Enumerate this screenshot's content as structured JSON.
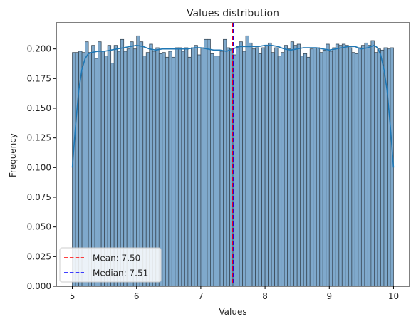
{
  "chart_data": {
    "type": "bar",
    "title": "Values distribution",
    "xlabel": "Values",
    "ylabel": "Frequency",
    "xlim": [
      4.75,
      10.25
    ],
    "ylim": [
      0,
      0.222
    ],
    "x_ticks": [
      "5",
      "6",
      "7",
      "8",
      "9",
      "10"
    ],
    "y_ticks": [
      "0.000",
      "0.025",
      "0.050",
      "0.075",
      "0.100",
      "0.125",
      "0.150",
      "0.175",
      "0.200"
    ],
    "bin_start": 5.0,
    "bin_width": 0.05,
    "values": [
      0.197,
      0.197,
      0.198,
      0.197,
      0.206,
      0.197,
      0.203,
      0.192,
      0.206,
      0.198,
      0.194,
      0.203,
      0.188,
      0.203,
      0.198,
      0.208,
      0.198,
      0.2,
      0.206,
      0.2,
      0.211,
      0.206,
      0.194,
      0.197,
      0.204,
      0.198,
      0.201,
      0.196,
      0.197,
      0.193,
      0.198,
      0.193,
      0.201,
      0.201,
      0.198,
      0.201,
      0.193,
      0.201,
      0.203,
      0.195,
      0.201,
      0.208,
      0.208,
      0.196,
      0.194,
      0.194,
      0.198,
      0.208,
      0.201,
      0.2,
      0.195,
      0.202,
      0.206,
      0.198,
      0.211,
      0.205,
      0.2,
      0.201,
      0.196,
      0.201,
      0.203,
      0.205,
      0.197,
      0.201,
      0.194,
      0.197,
      0.203,
      0.2,
      0.206,
      0.203,
      0.204,
      0.194,
      0.196,
      0.193,
      0.2,
      0.201,
      0.201,
      0.197,
      0.199,
      0.204,
      0.198,
      0.201,
      0.204,
      0.203,
      0.204,
      0.203,
      0.201,
      0.197,
      0.196,
      0.201,
      0.203,
      0.205,
      0.203,
      0.207,
      0.197,
      0.2,
      0.199,
      0.201,
      0.2,
      0.201
    ],
    "kde": {
      "x": [
        5.0,
        5.05,
        5.1,
        5.15,
        5.2,
        5.25,
        5.3,
        5.4,
        5.5,
        5.6,
        5.7,
        5.8,
        5.9,
        6.0,
        6.1,
        6.2,
        6.3,
        6.4,
        6.5,
        6.6,
        6.7,
        6.8,
        6.9,
        7.0,
        7.1,
        7.2,
        7.3,
        7.4,
        7.5,
        7.6,
        7.7,
        7.8,
        7.9,
        8.0,
        8.1,
        8.2,
        8.3,
        8.4,
        8.5,
        8.6,
        8.7,
        8.8,
        8.9,
        9.0,
        9.1,
        9.2,
        9.3,
        9.4,
        9.5,
        9.6,
        9.7,
        9.75,
        9.8,
        9.85,
        9.9,
        9.95,
        10.0
      ],
      "y": [
        0.1,
        0.135,
        0.165,
        0.183,
        0.192,
        0.196,
        0.197,
        0.198,
        0.198,
        0.199,
        0.2,
        0.201,
        0.202,
        0.203,
        0.202,
        0.2,
        0.199,
        0.2,
        0.2,
        0.2,
        0.2,
        0.2,
        0.201,
        0.201,
        0.2,
        0.199,
        0.199,
        0.198,
        0.2,
        0.202,
        0.202,
        0.202,
        0.202,
        0.203,
        0.203,
        0.202,
        0.2,
        0.199,
        0.2,
        0.201,
        0.201,
        0.201,
        0.2,
        0.199,
        0.2,
        0.201,
        0.202,
        0.202,
        0.2,
        0.201,
        0.203,
        0.201,
        0.195,
        0.183,
        0.165,
        0.135,
        0.1
      ]
    },
    "mean": {
      "value": 7.5,
      "label": "Mean: 7.50",
      "color": "#ff0000"
    },
    "median": {
      "value": 7.51,
      "label": "Median: 7.51",
      "color": "#0000ff"
    },
    "colors": {
      "bar_fill": "#7fa9cc",
      "bar_edge": "#3a4a58",
      "kde": "#1f77b4"
    },
    "legend_placement": "lower-left",
    "grid": false
  }
}
